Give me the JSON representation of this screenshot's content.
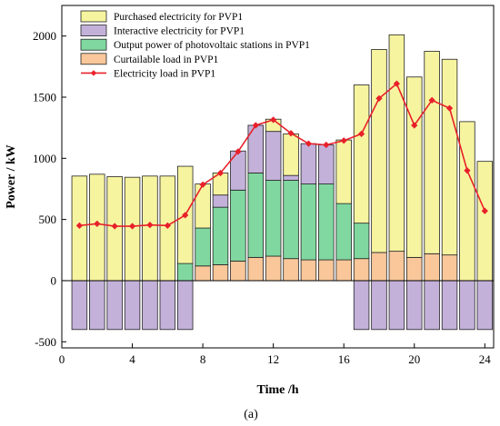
{
  "chart_data": {
    "type": "bar",
    "xlabel": "Time /h",
    "ylabel": "Power / kW",
    "caption": "(a)",
    "xlim": [
      0,
      24.5
    ],
    "ylim": [
      -550,
      2250
    ],
    "x_ticks": [
      0,
      4,
      8,
      12,
      16,
      20,
      24
    ],
    "y_ticks": [
      -500,
      0,
      500,
      1000,
      1500,
      2000
    ],
    "grid": false,
    "legend_position": "top-left",
    "x": [
      1,
      2,
      3,
      4,
      5,
      6,
      7,
      8,
      9,
      10,
      11,
      12,
      13,
      14,
      15,
      16,
      17,
      18,
      19,
      20,
      21,
      22,
      23,
      24
    ],
    "series": [
      {
        "name": "Curtailable load in PVP1",
        "color": "#f9c79a",
        "values": [
          0,
          0,
          0,
          0,
          0,
          0,
          0,
          120,
          130,
          160,
          190,
          200,
          180,
          170,
          170,
          170,
          180,
          230,
          240,
          190,
          220,
          210,
          0,
          0
        ]
      },
      {
        "name": "Output power of photovoltaic stations in PVP1",
        "color": "#80d8a0",
        "values": [
          0,
          0,
          0,
          0,
          0,
          0,
          140,
          310,
          470,
          580,
          690,
          620,
          640,
          620,
          620,
          460,
          290,
          0,
          0,
          0,
          0,
          0,
          0,
          0
        ]
      },
      {
        "name": "Interactive electricity for PVP1",
        "color": "#c3b1da",
        "values": [
          -400,
          -400,
          -400,
          -400,
          -400,
          -400,
          -400,
          0,
          100,
          320,
          390,
          400,
          40,
          330,
          320,
          0,
          -400,
          -400,
          -400,
          -400,
          -400,
          -400,
          -400,
          -400
        ]
      },
      {
        "name": "Purchased electricity for PVP1",
        "color": "#f7f4a0",
        "values": [
          855,
          870,
          850,
          845,
          855,
          855,
          795,
          360,
          180,
          0,
          0,
          100,
          340,
          0,
          0,
          520,
          1130,
          1660,
          1770,
          1475,
          1655,
          1600,
          1300,
          975
        ]
      },
      {
        "name": "Electricity load in PVP1",
        "color": "#e8202a",
        "type": "line",
        "values": [
          450,
          465,
          445,
          445,
          455,
          450,
          535,
          785,
          880,
          1055,
          1270,
          1315,
          1205,
          1120,
          1110,
          1145,
          1200,
          1490,
          1610,
          1270,
          1475,
          1410,
          900,
          570
        ]
      }
    ]
  }
}
